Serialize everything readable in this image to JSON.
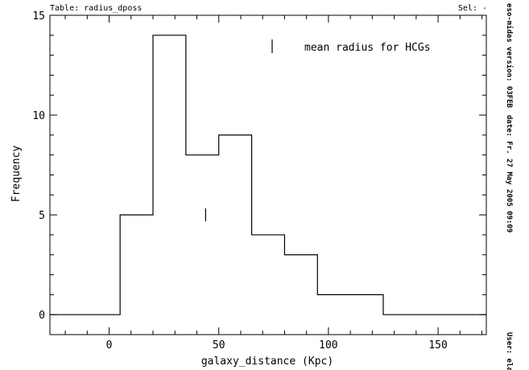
{
  "header": {
    "table_label": "Table: radius_dposs",
    "sel_label": "Sel: -"
  },
  "side_info": {
    "version": "eso-midas version: 03FEB",
    "date": "date: Fr. 27 May 2005 09:09",
    "user": "User: ela"
  },
  "chart_data": {
    "type": "histogram",
    "xlabel": "galaxy_distance (Kpc)",
    "ylabel": "Frequency",
    "xlim": [
      -27,
      172
    ],
    "ylim": [
      -1,
      15
    ],
    "x_ticks": [
      0,
      50,
      100,
      150
    ],
    "y_ticks": [
      0,
      5,
      10,
      15
    ],
    "bins": [
      {
        "x0": -30,
        "x1": 5,
        "count": 0
      },
      {
        "x0": 5,
        "x1": 20,
        "count": 5
      },
      {
        "x0": 20,
        "x1": 35,
        "count": 14
      },
      {
        "x0": 35,
        "x1": 50,
        "count": 8
      },
      {
        "x0": 50,
        "x1": 65,
        "count": 9
      },
      {
        "x0": 65,
        "x1": 80,
        "count": 4
      },
      {
        "x0": 80,
        "x1": 95,
        "count": 3
      },
      {
        "x0": 95,
        "x1": 110,
        "count": 1
      },
      {
        "x0": 110,
        "x1": 125,
        "count": 1
      },
      {
        "x0": 125,
        "x1": 175,
        "count": 0
      }
    ],
    "legend": {
      "label": "mean radius for HCGs",
      "marker": "vertical-tick",
      "position": "top-right"
    },
    "markers": [
      {
        "name": "mean radius for HCGs",
        "x": 44,
        "y": 5
      }
    ],
    "grid": false
  }
}
